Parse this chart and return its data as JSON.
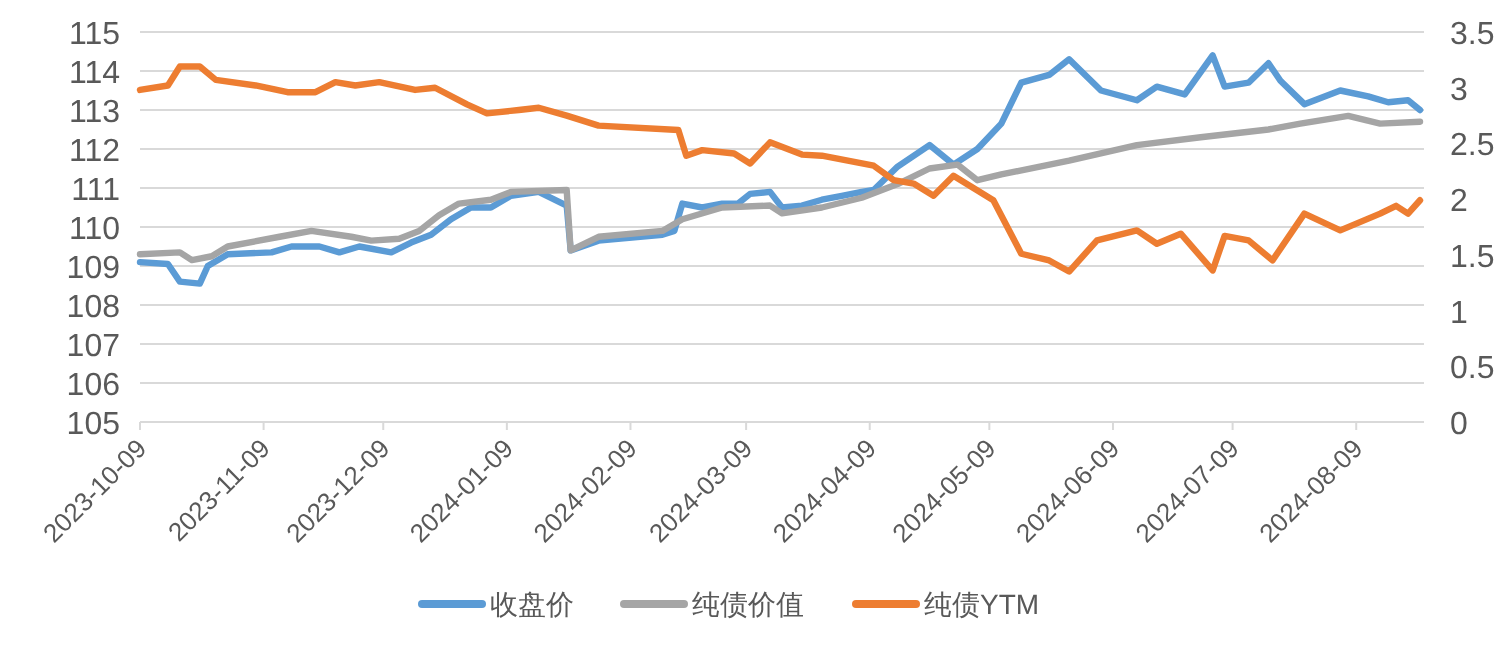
{
  "chart_data": {
    "type": "line",
    "grid": "y",
    "legend": "bottom",
    "line_style": "solid",
    "marker": "none",
    "xlim": [
      "2023-10-09",
      "2024-08-26"
    ],
    "xticks": [
      "2023-10-09",
      "2023-11-09",
      "2023-12-09",
      "2024-01-09",
      "2024-02-09",
      "2024-03-09",
      "2024-04-09",
      "2024-05-09",
      "2024-06-09",
      "2024-07-09",
      "2024-08-09"
    ],
    "ylim": [
      105,
      115
    ],
    "yticks": [
      105,
      106,
      107,
      108,
      109,
      110,
      111,
      112,
      113,
      114,
      115
    ],
    "y2lim": [
      0,
      3.5
    ],
    "y2ticks": [
      0,
      0.5,
      1,
      1.5,
      2,
      2.5,
      3,
      3.5
    ],
    "series": [
      {
        "name": "收盘价",
        "color": "#5b9bd5",
        "x": [
          "2023-10-09",
          "2023-10-16",
          "2023-10-19",
          "2023-10-24",
          "2023-10-26",
          "2023-10-31",
          "2023-11-11",
          "2023-11-16",
          "2023-11-23",
          "2023-11-28",
          "2023-12-03",
          "2023-12-11",
          "2023-12-16",
          "2023-12-21",
          "2023-12-26",
          "2023-12-31",
          "2024-01-05",
          "2024-01-10",
          "2024-01-17",
          "2024-01-24",
          "2024-01-25",
          "2024-02-01",
          "2024-02-17",
          "2024-02-20",
          "2024-02-22",
          "2024-02-27",
          "2024-03-03",
          "2024-03-07",
          "2024-03-10",
          "2024-03-15",
          "2024-03-18",
          "2024-03-23",
          "2024-03-28",
          "2024-04-02",
          "2024-04-07",
          "2024-04-10",
          "2024-04-16",
          "2024-04-24",
          "2024-04-30",
          "2024-05-06",
          "2024-05-12",
          "2024-05-17",
          "2024-05-24",
          "2024-05-29",
          "2024-06-06",
          "2024-06-15",
          "2024-06-20",
          "2024-06-27",
          "2024-07-04",
          "2024-07-07",
          "2024-07-13",
          "2024-07-18",
          "2024-07-21",
          "2024-07-27",
          "2024-08-05",
          "2024-08-12",
          "2024-08-17",
          "2024-08-22",
          "2024-08-25"
        ],
        "values": [
          109.1,
          109.05,
          108.6,
          108.55,
          109.0,
          109.3,
          109.35,
          109.5,
          109.5,
          109.35,
          109.5,
          109.35,
          109.6,
          109.8,
          110.2,
          110.5,
          110.5,
          110.8,
          110.9,
          110.55,
          109.4,
          109.65,
          109.8,
          109.9,
          110.6,
          110.5,
          110.6,
          110.6,
          110.85,
          110.9,
          110.5,
          110.55,
          110.7,
          110.8,
          110.9,
          110.95,
          111.55,
          112.1,
          111.6,
          112.0,
          112.65,
          113.7,
          113.9,
          114.3,
          113.5,
          113.25,
          113.6,
          113.4,
          114.4,
          113.6,
          113.7,
          114.2,
          113.75,
          113.15,
          113.5,
          113.35,
          113.2,
          113.25,
          113.0
        ]
      },
      {
        "name": "纯债价值",
        "color": "#a5a5a5",
        "x": [
          "2023-10-09",
          "2023-10-19",
          "2023-10-22",
          "2023-10-27",
          "2023-10-31",
          "2023-11-13",
          "2023-11-21",
          "2023-12-01",
          "2023-12-06",
          "2023-12-13",
          "2023-12-18",
          "2023-12-23",
          "2023-12-28",
          "2024-01-05",
          "2024-01-10",
          "2024-01-24",
          "2024-01-25",
          "2024-02-01",
          "2024-02-17",
          "2024-02-22",
          "2024-03-03",
          "2024-03-15",
          "2024-03-18",
          "2024-03-28",
          "2024-04-07",
          "2024-04-16",
          "2024-04-24",
          "2024-05-01",
          "2024-05-06",
          "2024-05-12",
          "2024-05-29",
          "2024-06-15",
          "2024-07-01",
          "2024-07-18",
          "2024-07-26",
          "2024-08-07",
          "2024-08-15",
          "2024-08-25"
        ],
        "values": [
          109.3,
          109.35,
          109.15,
          109.25,
          109.5,
          109.75,
          109.9,
          109.75,
          109.65,
          109.7,
          109.9,
          110.3,
          110.6,
          110.7,
          110.9,
          110.95,
          109.4,
          109.75,
          109.9,
          110.2,
          110.5,
          110.55,
          110.35,
          110.5,
          110.75,
          111.1,
          111.5,
          111.6,
          111.2,
          111.35,
          111.7,
          112.1,
          112.3,
          112.5,
          112.65,
          112.85,
          112.65,
          112.7
        ]
      },
      {
        "name": "纯债YTM",
        "color": "#ed7d31",
        "axis": "y2",
        "x": [
          "2023-10-09",
          "2023-10-16",
          "2023-10-19",
          "2023-10-24",
          "2023-10-28",
          "2023-11-07",
          "2023-11-15",
          "2023-11-22",
          "2023-11-27",
          "2023-12-02",
          "2023-12-08",
          "2023-12-17",
          "2023-12-22",
          "2023-12-30",
          "2024-01-04",
          "2024-01-12",
          "2024-01-17",
          "2024-01-24",
          "2024-02-01",
          "2024-02-21",
          "2024-02-23",
          "2024-02-27",
          "2024-03-06",
          "2024-03-10",
          "2024-03-15",
          "2024-03-23",
          "2024-03-28",
          "2024-04-10",
          "2024-04-15",
          "2024-04-20",
          "2024-04-25",
          "2024-04-30",
          "2024-05-05",
          "2024-05-10",
          "2024-05-16",
          "2024-05-17",
          "2024-05-24",
          "2024-05-29",
          "2024-06-05",
          "2024-06-15",
          "2024-06-20",
          "2024-06-26",
          "2024-07-04",
          "2024-07-07",
          "2024-07-13",
          "2024-07-19",
          "2024-07-27",
          "2024-08-05",
          "2024-08-15",
          "2024-08-19",
          "2024-08-22",
          "2024-08-25"
        ],
        "values": [
          2.98,
          3.02,
          3.19,
          3.19,
          3.07,
          3.02,
          2.96,
          2.96,
          3.05,
          3.02,
          3.05,
          2.98,
          3.0,
          2.85,
          2.77,
          2.8,
          2.82,
          2.75,
          2.66,
          2.62,
          2.39,
          2.44,
          2.41,
          2.32,
          2.51,
          2.4,
          2.39,
          2.3,
          2.17,
          2.14,
          2.03,
          2.21,
          2.1,
          1.99,
          1.58,
          1.51,
          1.45,
          1.35,
          1.63,
          1.72,
          1.6,
          1.69,
          1.36,
          1.67,
          1.63,
          1.45,
          1.87,
          1.72,
          1.87,
          1.94,
          1.87,
          1.99
        ]
      }
    ]
  }
}
